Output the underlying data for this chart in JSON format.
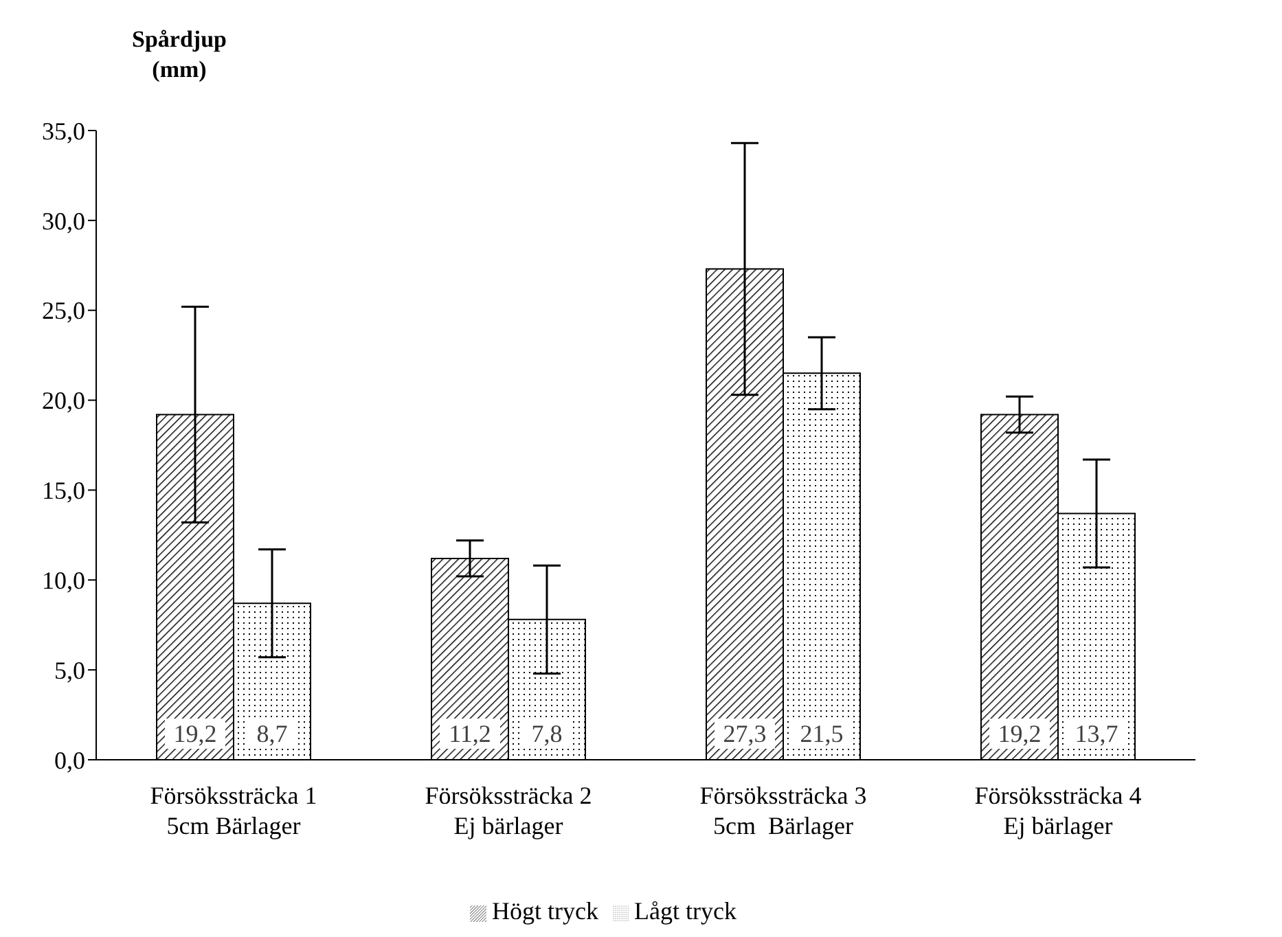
{
  "chart_data": {
    "type": "bar",
    "ylabel": "Spårdjup (mm)",
    "categories": [
      "Försökssträcka 1\n5cm Bärlager",
      "Försökssträcka 2\nEj bärlager",
      "Försökssträcka 3\n5cm  Bärlager",
      "Försökssträcka 4\nEj bärlager"
    ],
    "series": [
      {
        "name": "Högt tryck",
        "color": "#000000",
        "values": [
          19.2,
          11.2,
          27.3,
          19.2
        ],
        "errors": [
          6.0,
          1.0,
          7.0,
          1.0
        ],
        "value_labels": [
          "19,2",
          "11,2",
          "27,3",
          "19,2"
        ]
      },
      {
        "name": "Lågt tryck",
        "color": "#000000",
        "values": [
          8.7,
          7.8,
          21.5,
          13.7
        ],
        "errors": [
          3.0,
          3.0,
          2.0,
          3.0
        ],
        "value_labels": [
          "8,7",
          "7,8",
          "21,5",
          "13,7"
        ]
      }
    ],
    "ylim": [
      0,
      35
    ],
    "yticks": [
      {
        "value": 0,
        "label": "0,0"
      },
      {
        "value": 5,
        "label": "5,0"
      },
      {
        "value": 10,
        "label": "10,0"
      },
      {
        "value": 15,
        "label": "15,0"
      },
      {
        "value": 20,
        "label": "20,0"
      },
      {
        "value": 25,
        "label": "25,0"
      },
      {
        "value": 30,
        "label": "30,0"
      },
      {
        "value": 35,
        "label": "35,0"
      }
    ],
    "grid": false,
    "legend": "bottom"
  }
}
